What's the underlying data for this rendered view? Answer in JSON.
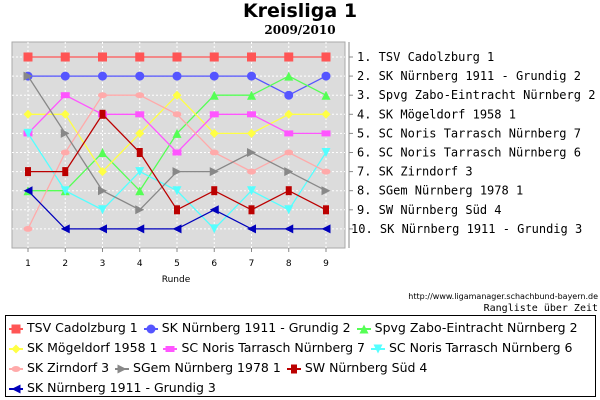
{
  "chart_data": {
    "type": "line",
    "title": "Kreisliga 1",
    "subtitle": "2009/2010",
    "xlabel": "Runde",
    "x": [
      1,
      2,
      3,
      4,
      5,
      6,
      7,
      8,
      9
    ],
    "ylim": [
      1,
      10
    ],
    "y_inverted": true,
    "rank_labels": [
      "1. TSV Cadolzburg 1",
      "2. SK Nürnberg 1911 - Grundig 2",
      "3. Spvg Zabo-Eintracht Nürnberg 2",
      "4. SK Mögeldorf 1958 1",
      "5. SC Noris Tarrasch Nürnberg 7",
      "6. SC Noris Tarrasch Nürnberg 6",
      "7. SK Zirndorf 3",
      "8. SGem Nürnberg 1978 1",
      "9. SW Nürnberg Süd 4",
      "10. SK Nürnberg 1911 - Grundig 3"
    ],
    "legend_position": "bottom",
    "grid": true,
    "series": [
      {
        "name": "TSV Cadolzburg 1",
        "color": "#ff5555",
        "marker": "square",
        "values": [
          1,
          1,
          1,
          1,
          1,
          1,
          1,
          1,
          1
        ]
      },
      {
        "name": "SK Nürnberg 1911 - Grundig 2",
        "color": "#5555ff",
        "marker": "circle",
        "values": [
          2,
          2,
          2,
          2,
          2,
          2,
          2,
          3,
          2
        ]
      },
      {
        "name": "Spvg Zabo-Eintracht Nürnberg 2",
        "color": "#55ff55",
        "marker": "triangle-up",
        "values": [
          8,
          8,
          6,
          8,
          5,
          3,
          3,
          2,
          3
        ]
      },
      {
        "name": "SK Mögeldorf 1958 1",
        "color": "#ffff44",
        "marker": "diamond",
        "values": [
          4,
          4,
          7,
          5,
          3,
          5,
          5,
          4,
          4
        ]
      },
      {
        "name": "SC Noris Tarrasch Nürnberg 7",
        "color": "#ff55ff",
        "marker": "flat-square",
        "values": [
          5,
          3,
          4,
          4,
          6,
          4,
          4,
          5,
          5
        ]
      },
      {
        "name": "SC Noris Tarrasch Nürnberg 6",
        "color": "#55ffff",
        "marker": "triangle-down",
        "values": [
          5,
          8,
          9,
          7,
          8,
          10,
          8,
          9,
          6
        ]
      },
      {
        "name": "SK Zirndorf 3",
        "color": "#ffaaaa",
        "marker": "ellipse",
        "values": [
          10,
          6,
          3,
          3,
          4,
          6,
          7,
          6,
          7
        ]
      },
      {
        "name": "SGem Nürnberg 1978 1",
        "color": "#888888",
        "marker": "triangle-right",
        "values": [
          2,
          5,
          8,
          9,
          7,
          7,
          6,
          7,
          8
        ]
      },
      {
        "name": "SW Nürnberg Süd 4",
        "color": "#bb0000",
        "marker": "bar",
        "values": [
          7,
          7,
          4,
          6,
          9,
          8,
          9,
          8,
          9
        ]
      },
      {
        "name": "SK Nürnberg 1911 - Grundig 3",
        "color": "#0000bb",
        "marker": "triangle-left",
        "values": [
          8,
          10,
          10,
          10,
          10,
          9,
          10,
          10,
          10
        ]
      }
    ]
  },
  "footer": {
    "url": "http://www.ligamanager.schachbund-bayern.de",
    "caption": "Rangliste über Zeit"
  }
}
